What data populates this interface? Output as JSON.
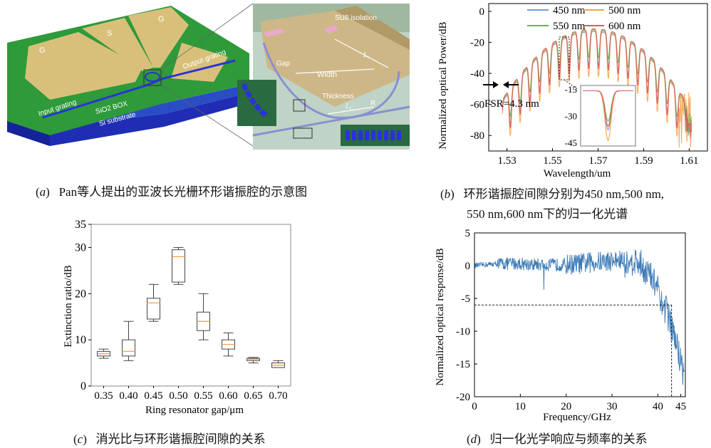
{
  "figure": {
    "a": {
      "letter": "a",
      "caption": "Pan等人提出的亚波长光栅环形谐振腔的示意图",
      "labels": {
        "g1": "G",
        "s": "S",
        "g2": "G",
        "output_grating": "Output grating",
        "input_grating": "Input grating",
        "box": "SiO2 BOX",
        "substrate": "Si substrate",
        "su8": "SU8 isolation",
        "gap": "Gap",
        "width": "Width",
        "thickness": "Thickness",
        "r": "R",
        "ls": "L",
        "ls_sub": "s",
        "lc": "L",
        "lc_sub": "C"
      },
      "colors": {
        "electrode": "#d9c07a",
        "green": "#2e9a3a",
        "box": "#1a3fa0",
        "grating": "#2a33d8"
      }
    },
    "b": {
      "letter": "b",
      "caption_line1": "环形谐振腔间隙分别为450 nm,500 nm,",
      "caption_line2": "550 nm,600 nm下的归一化光谱",
      "fsr_label": "FSR=4.3 nm"
    },
    "c": {
      "letter": "c",
      "caption": "消光比与环形谐振腔间隙的关系"
    },
    "d": {
      "letter": "d",
      "caption": "归一化光学响应与频率的关系"
    }
  },
  "chart_data": [
    {
      "id": "b",
      "type": "line",
      "xlabel": "Wavelength/um",
      "ylabel": "Normalized optical Power/dB",
      "xticks": [
        "1.53",
        "1.55",
        "1.57",
        "1.59",
        "1.61"
      ],
      "yticks": [
        "0",
        "-20",
        "-40",
        "-60",
        "-80"
      ],
      "xlim": [
        1.522,
        1.618
      ],
      "ylim": [
        -90,
        5
      ],
      "legend": "top-right",
      "series": [
        {
          "name": "450 nm",
          "color": "#6f9fd8"
        },
        {
          "name": "500 nm",
          "color": "#f4a24a"
        },
        {
          "name": "550 nm",
          "color": "#5cb85c"
        },
        {
          "name": "600 nm",
          "color": "#e0585b"
        }
      ],
      "envelope_peak_db": -13,
      "envelope_center_um": 1.568,
      "fsr_nm": 4.3,
      "inset": {
        "yticks": [
          "-15",
          "-30",
          "-45"
        ],
        "ylim": [
          -47,
          -13
        ]
      }
    },
    {
      "id": "c",
      "type": "box",
      "xlabel": "Ring resonator gap/μm",
      "ylabel": "Extinction ratio/dB",
      "categories": [
        "0.35",
        "0.40",
        "0.45",
        "0.50",
        "0.55",
        "0.60",
        "0.65",
        "0.70"
      ],
      "yticks": [
        "0",
        "10",
        "20",
        "30",
        "35"
      ],
      "ylim": [
        0,
        35
      ],
      "boxes": [
        {
          "min": 6.0,
          "q1": 6.5,
          "median": 7.0,
          "q3": 7.5,
          "max": 8.0
        },
        {
          "min": 5.5,
          "q1": 6.5,
          "median": 7.5,
          "q3": 10.0,
          "max": 14.0
        },
        {
          "min": 14.0,
          "q1": 14.5,
          "median": 18.0,
          "q3": 19.0,
          "max": 22.0
        },
        {
          "min": 22.0,
          "q1": 22.5,
          "median": 28.0,
          "q3": 29.5,
          "max": 30.0
        },
        {
          "min": 10.0,
          "q1": 12.0,
          "median": 14.0,
          "q3": 16.0,
          "max": 20.0
        },
        {
          "min": 6.5,
          "q1": 8.0,
          "median": 9.0,
          "q3": 10.0,
          "max": 11.5
        },
        {
          "min": 5.0,
          "q1": 5.5,
          "median": 5.8,
          "q3": 6.0,
          "max": 6.2
        },
        {
          "min": 4.0,
          "q1": 4.0,
          "median": 4.5,
          "q3": 5.0,
          "max": 5.5
        }
      ]
    },
    {
      "id": "d",
      "type": "line",
      "xlabel": "Frequency/GHz",
      "ylabel": "Normalized optical response/dB",
      "xticks": [
        "0",
        "10",
        "20",
        "30",
        "40",
        "45"
      ],
      "yticks": [
        "5",
        "0",
        "-5",
        "-10",
        "-15",
        "-20"
      ],
      "xlim": [
        0,
        46
      ],
      "ylim": [
        -20,
        5
      ],
      "reference_level_db": -6,
      "reference_freq_ghz": 43,
      "color": "#3c7ab5"
    }
  ]
}
